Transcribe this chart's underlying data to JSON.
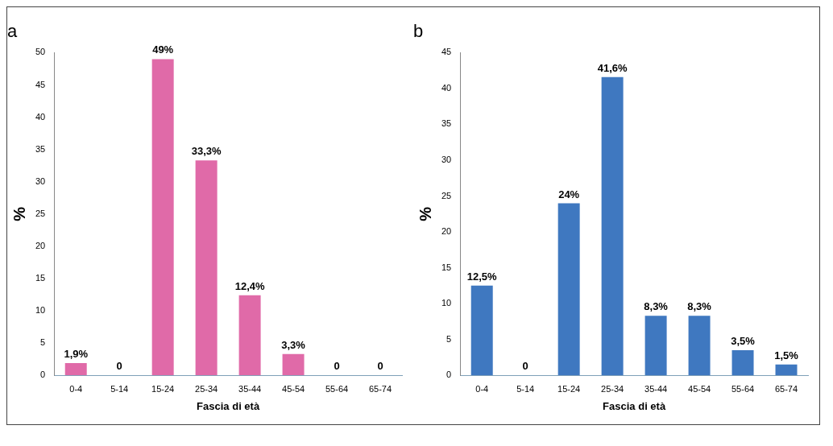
{
  "chart_data": [
    {
      "type": "bar",
      "title": "a",
      "xlabel": "Fascia di età",
      "ylabel": "%",
      "categories": [
        "0-4",
        "5-14",
        "15-24",
        "25-34",
        "35-44",
        "45-54",
        "55-64",
        "65-74"
      ],
      "values": [
        1.9,
        0,
        49,
        33.3,
        12.4,
        3.3,
        0,
        0
      ],
      "value_labels": [
        "1,9%",
        "0",
        "49%",
        "33,3%",
        "12,4%",
        "3,3%",
        "0",
        "0"
      ],
      "color": "#e06aa8",
      "ylim": [
        0,
        50
      ],
      "yticks": [
        0,
        5,
        10,
        15,
        20,
        25,
        30,
        35,
        40,
        45,
        50
      ],
      "grid": false,
      "legend": false
    },
    {
      "type": "bar",
      "title": "b",
      "xlabel": "Fascia di età",
      "ylabel": "%",
      "categories": [
        "0-4",
        "5-14",
        "15-24",
        "25-34",
        "35-44",
        "45-54",
        "55-64",
        "65-74"
      ],
      "values": [
        12.5,
        0,
        24,
        41.6,
        8.3,
        8.3,
        3.5,
        1.5
      ],
      "value_labels": [
        "12,5%",
        "0",
        "24%",
        "41,6%",
        "8,3%",
        "8,3%",
        "3,5%",
        "1,5%"
      ],
      "color": "#3f78c0",
      "ylim": [
        0,
        45
      ],
      "yticks": [
        0,
        5,
        10,
        15,
        20,
        25,
        30,
        35,
        40,
        45
      ],
      "grid": false,
      "legend": false
    }
  ]
}
